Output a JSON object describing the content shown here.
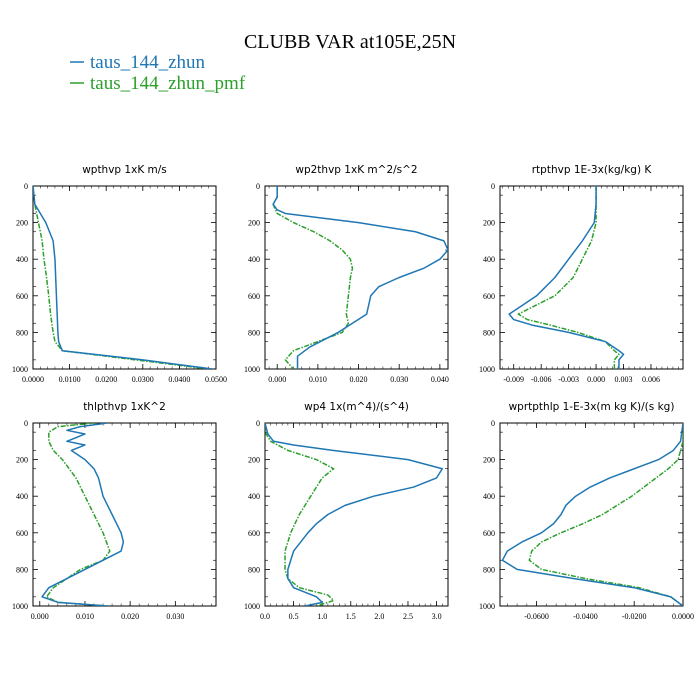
{
  "figure": {
    "title": "CLUBB VAR at105E,25N",
    "legend": [
      {
        "label": "taus_144_zhun",
        "color": "#1f77b4"
      },
      {
        "label": "taus_144_zhun_pmf",
        "color": "#2ca02c"
      }
    ]
  },
  "chart_data": [
    {
      "type": "line",
      "title": "wpthvp   1xK m/s",
      "xlim": [
        0.0,
        0.05
      ],
      "ylim": [
        0,
        1000
      ],
      "y_inverted": true,
      "xticks": [
        0.0,
        0.01,
        0.02,
        0.03,
        0.04,
        0.05
      ],
      "xticklabels": [
        "0.0000",
        "0.0100",
        "0.0200",
        "0.0300",
        "0.0400",
        "0.0500"
      ],
      "yticks": [
        0,
        200,
        400,
        600,
        800,
        1000
      ],
      "series": [
        {
          "name": "taus_144_zhun",
          "color": "#1f77b4",
          "y": [
            0,
            100,
            200,
            300,
            400,
            500,
            600,
            700,
            800,
            850,
            900,
            950,
            1000
          ],
          "x": [
            0.0,
            0.0005,
            0.0035,
            0.0055,
            0.006,
            0.0062,
            0.0064,
            0.0066,
            0.0068,
            0.007,
            0.008,
            0.03,
            0.049
          ]
        },
        {
          "name": "taus_144_zhun_pmf",
          "color": "#2ca02c",
          "y": [
            0,
            100,
            200,
            300,
            400,
            500,
            600,
            700,
            800,
            850,
            900,
            950,
            1000
          ],
          "x": [
            0.0,
            0.0005,
            0.0015,
            0.0025,
            0.003,
            0.0037,
            0.0043,
            0.0048,
            0.0055,
            0.006,
            0.008,
            0.028,
            0.048
          ]
        }
      ]
    },
    {
      "type": "line",
      "title": "wp2thvp   1xK m^2/s^2",
      "xlim": [
        -0.003,
        0.042
      ],
      "ylim": [
        0,
        1000
      ],
      "y_inverted": true,
      "xticks": [
        0.0,
        0.01,
        0.02,
        0.03,
        0.04
      ],
      "xticklabels": [
        "0.000",
        "0.010",
        "0.020",
        "0.030",
        "0.040"
      ],
      "yticks": [
        0,
        200,
        400,
        600,
        800,
        1000
      ],
      "series": [
        {
          "name": "taus_144_zhun",
          "color": "#1f77b4",
          "y": [
            0,
            60,
            100,
            130,
            150,
            200,
            250,
            300,
            350,
            400,
            450,
            500,
            550,
            600,
            700,
            800,
            880,
            930,
            960,
            1000
          ],
          "x": [
            0.0,
            0.0,
            -0.001,
            0.0,
            0.002,
            0.02,
            0.034,
            0.041,
            0.042,
            0.04,
            0.036,
            0.03,
            0.025,
            0.023,
            0.022,
            0.015,
            0.008,
            0.005,
            0.005,
            0.005
          ]
        },
        {
          "name": "taus_144_zhun_pmf",
          "color": "#2ca02c",
          "y": [
            0,
            60,
            100,
            150,
            200,
            250,
            300,
            350,
            400,
            450,
            500,
            600,
            700,
            750,
            800,
            850,
            900,
            950,
            1000
          ],
          "x": [
            0.0,
            0.0,
            -0.001,
            0.0,
            0.004,
            0.009,
            0.013,
            0.016,
            0.018,
            0.0185,
            0.018,
            0.0175,
            0.017,
            0.0175,
            0.016,
            0.01,
            0.004,
            0.002,
            0.004
          ]
        }
      ]
    },
    {
      "type": "line",
      "title": "rtpthvp   1E-3x(kg/kg) K",
      "xlim": [
        -0.0105,
        0.0095
      ],
      "ylim": [
        0,
        1000
      ],
      "y_inverted": true,
      "xticks": [
        -0.009,
        -0.006,
        -0.003,
        0.0,
        0.003,
        0.006
      ],
      "xticklabels": [
        "-0.009",
        "-0.006",
        "-0.003",
        "0.000",
        "0.003",
        "0.006"
      ],
      "yticks": [
        0,
        200,
        400,
        600,
        800,
        1000
      ],
      "series": [
        {
          "name": "taus_144_zhun",
          "color": "#1f77b4",
          "y": [
            0,
            100,
            200,
            300,
            400,
            500,
            600,
            650,
            700,
            730,
            760,
            800,
            850,
            900,
            920,
            950,
            1000
          ],
          "x": [
            0.0,
            0.0,
            -0.0002,
            -0.0015,
            -0.003,
            -0.0045,
            -0.0065,
            -0.008,
            -0.0095,
            -0.009,
            -0.007,
            -0.003,
            0.001,
            0.0025,
            0.003,
            0.0025,
            0.0025
          ]
        },
        {
          "name": "taus_144_zhun_pmf",
          "color": "#2ca02c",
          "y": [
            0,
            100,
            200,
            300,
            400,
            500,
            600,
            650,
            700,
            730,
            760,
            800,
            850,
            900,
            920,
            950,
            1000
          ],
          "x": [
            0.0,
            0.0,
            0.0,
            -0.0005,
            -0.0015,
            -0.0025,
            -0.0045,
            -0.0065,
            -0.0085,
            -0.0075,
            -0.005,
            -0.002,
            0.001,
            0.002,
            0.0025,
            0.002,
            0.002
          ]
        }
      ]
    },
    {
      "type": "line",
      "title": "thlpthvp   1xK^2",
      "xlim": [
        -0.0015,
        0.039
      ],
      "ylim": [
        0,
        1000
      ],
      "y_inverted": true,
      "xticks": [
        0.0,
        0.01,
        0.02,
        0.03
      ],
      "xticklabels": [
        "0.000",
        "0.010",
        "0.020",
        "0.030"
      ],
      "yticks": [
        0,
        200,
        400,
        600,
        800,
        1000
      ],
      "series": [
        {
          "name": "taus_144_zhun",
          "color": "#1f77b4",
          "y": [
            0,
            20,
            40,
            60,
            80,
            100,
            120,
            150,
            200,
            250,
            300,
            400,
            500,
            600,
            650,
            700,
            800,
            900,
            950,
            980,
            1000
          ],
          "x": [
            0.015,
            0.009,
            0.006,
            0.01,
            0.008,
            0.006,
            0.01,
            0.007,
            0.01,
            0.012,
            0.013,
            0.014,
            0.016,
            0.018,
            0.0185,
            0.018,
            0.01,
            0.002,
            0.0005,
            0.004,
            0.015
          ]
        },
        {
          "name": "taus_144_zhun_pmf",
          "color": "#2ca02c",
          "y": [
            0,
            20,
            50,
            100,
            150,
            200,
            300,
            400,
            500,
            600,
            700,
            750,
            800,
            900,
            950,
            980,
            1000
          ],
          "x": [
            0.012,
            0.004,
            0.002,
            0.002,
            0.003,
            0.005,
            0.008,
            0.01,
            0.012,
            0.014,
            0.0155,
            0.014,
            0.009,
            0.003,
            0.0015,
            0.004,
            0.015
          ]
        }
      ]
    },
    {
      "type": "line",
      "title": "wp4   1x(m^4)/(s^4)",
      "xlim": [
        0.0,
        3.2
      ],
      "ylim": [
        0,
        1000
      ],
      "y_inverted": true,
      "xticks": [
        0.0,
        0.5,
        1.0,
        1.5,
        2.0,
        2.5,
        3.0
      ],
      "xticklabels": [
        "0.0",
        "0.5",
        "1.0",
        "1.5",
        "2.0",
        "2.5",
        "3.0"
      ],
      "yticks": [
        0,
        200,
        400,
        600,
        800,
        1000
      ],
      "series": [
        {
          "name": "taus_144_zhun",
          "color": "#1f77b4",
          "y": [
            0,
            60,
            100,
            120,
            150,
            200,
            250,
            300,
            350,
            400,
            450,
            500,
            550,
            600,
            700,
            800,
            850,
            900,
            950,
            980,
            1000
          ],
          "x": [
            0.0,
            0.05,
            0.15,
            0.5,
            1.2,
            2.5,
            3.1,
            3.0,
            2.6,
            1.9,
            1.4,
            1.1,
            0.9,
            0.75,
            0.5,
            0.4,
            0.4,
            0.5,
            0.9,
            1.0,
            0.7
          ]
        },
        {
          "name": "taus_144_zhun_pmf",
          "color": "#2ca02c",
          "y": [
            0,
            60,
            100,
            150,
            200,
            250,
            300,
            400,
            500,
            600,
            700,
            800,
            850,
            900,
            940,
            970,
            1000
          ],
          "x": [
            0.0,
            0.02,
            0.1,
            0.4,
            0.9,
            1.2,
            1.0,
            0.8,
            0.6,
            0.45,
            0.35,
            0.35,
            0.4,
            0.6,
            1.1,
            1.2,
            0.9
          ]
        }
      ]
    },
    {
      "type": "line",
      "title": "wprtpthlp   1-E-3x(m kg K)/(s kg)",
      "xlim": [
        -0.075,
        0.0
      ],
      "ylim": [
        0,
        1000
      ],
      "y_inverted": true,
      "xticks": [
        -0.06,
        -0.04,
        -0.02,
        0.0
      ],
      "xticklabels": [
        "-0.0600",
        "-0.0400",
        "-0.0200",
        "0.0000"
      ],
      "yticks": [
        0,
        200,
        400,
        600,
        800,
        1000
      ],
      "series": [
        {
          "name": "taus_144_zhun",
          "color": "#1f77b4",
          "y": [
            0,
            100,
            150,
            200,
            250,
            300,
            350,
            400,
            450,
            500,
            550,
            600,
            650,
            700,
            750,
            800,
            850,
            900,
            950,
            1000
          ],
          "x": [
            0.0,
            -0.001,
            -0.004,
            -0.01,
            -0.02,
            -0.03,
            -0.038,
            -0.044,
            -0.048,
            -0.05,
            -0.053,
            -0.058,
            -0.066,
            -0.072,
            -0.074,
            -0.068,
            -0.045,
            -0.02,
            -0.005,
            0.0
          ]
        },
        {
          "name": "taus_144_zhun_pmf",
          "color": "#2ca02c",
          "y": [
            0,
            100,
            200,
            250,
            300,
            350,
            400,
            450,
            500,
            550,
            600,
            650,
            700,
            750,
            800,
            850,
            900,
            950,
            1000
          ],
          "x": [
            0.0,
            0.0,
            -0.002,
            -0.006,
            -0.011,
            -0.016,
            -0.021,
            -0.027,
            -0.033,
            -0.041,
            -0.05,
            -0.058,
            -0.062,
            -0.063,
            -0.058,
            -0.04,
            -0.018,
            -0.005,
            0.0
          ]
        }
      ]
    }
  ]
}
